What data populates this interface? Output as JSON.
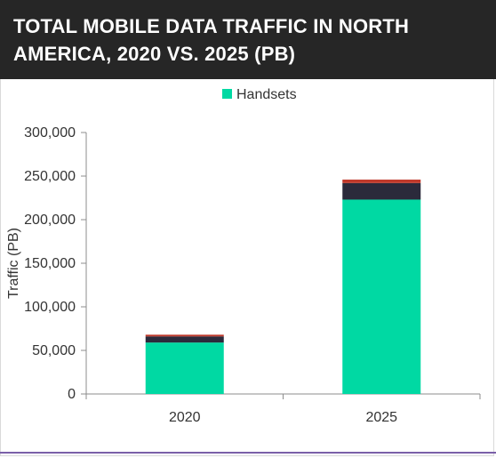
{
  "header": {
    "title": "TOTAL MOBILE DATA TRAFFIC IN NORTH AMERICA, 2020 VS. 2025 (PB)"
  },
  "colors": {
    "header_bg": "#262626",
    "handsets": "#00d9a3",
    "segment2": "#2b2a3b",
    "segment3": "#c0392b",
    "axis": "#8c8c8c",
    "bottom_line": "#7a5fa8"
  },
  "chart_data": {
    "type": "bar",
    "stacked": true,
    "categories": [
      "2020",
      "2025"
    ],
    "series": [
      {
        "name": "Handsets",
        "values": [
          59000,
          223000
        ],
        "color": "#00d9a3"
      },
      {
        "values": [
          7000,
          19000
        ],
        "color": "#2b2a3b"
      },
      {
        "values": [
          2000,
          4000
        ],
        "color": "#c0392b"
      }
    ],
    "title": "TOTAL MOBILE DATA TRAFFIC IN NORTH AMERICA, 2020 VS. 2025 (PB)",
    "xlabel": "",
    "ylabel": "Traffic (PB)",
    "ylim": [
      0,
      300000
    ],
    "yticks": [
      0,
      50000,
      100000,
      150000,
      200000,
      250000,
      300000
    ],
    "ytick_labels": [
      "0",
      "50,000",
      "100,000",
      "150,000",
      "200,000",
      "250,000",
      "300,000"
    ],
    "grid": false,
    "legend": "top"
  }
}
